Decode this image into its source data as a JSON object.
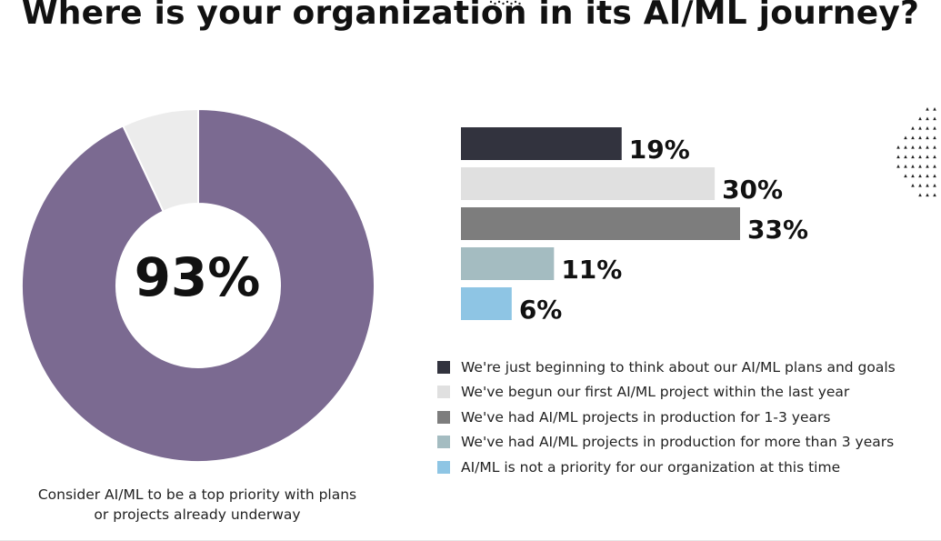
{
  "title": "Where is your organization in its AI/ML journey?",
  "donut": {
    "center_label": "93%",
    "caption_line1": "Consider AI/ML to be a top priority with plans",
    "caption_line2": "or projects already underway",
    "colors": {
      "main": "#7b6a91",
      "rest": "#ececec"
    }
  },
  "chart_data": [
    {
      "type": "pie",
      "slices": [
        {
          "value": 93,
          "color": "#7b6a91"
        },
        {
          "value": 7,
          "color": "#ececec"
        }
      ],
      "center_label": "93%",
      "caption": "Consider AI/ML to be a top priority with plans or projects already underway"
    },
    {
      "type": "bar",
      "orientation": "horizontal",
      "unit": "%",
      "categories": [
        "We're just beginning to think about our AI/ML plans and goals",
        "We've begun our first AI/ML project within the last year",
        "We've had AI/ML projects in production for 1-3 years",
        "We've had AI/ML projects in production for more than 3 years",
        "AI/ML is not a priority for our organization at this time"
      ],
      "values": [
        19,
        30,
        33,
        11,
        6
      ],
      "labels": [
        "19%",
        "30%",
        "33%",
        "11%",
        "6%"
      ],
      "colors": [
        "#32333e",
        "#e0e0e0",
        "#7d7d7d",
        "#a4bcc1",
        "#8ec5e4"
      ],
      "xlim": [
        0,
        33
      ],
      "grid": false,
      "legend": "bottom"
    }
  ],
  "decor": {
    "dots_color": "#222222"
  }
}
